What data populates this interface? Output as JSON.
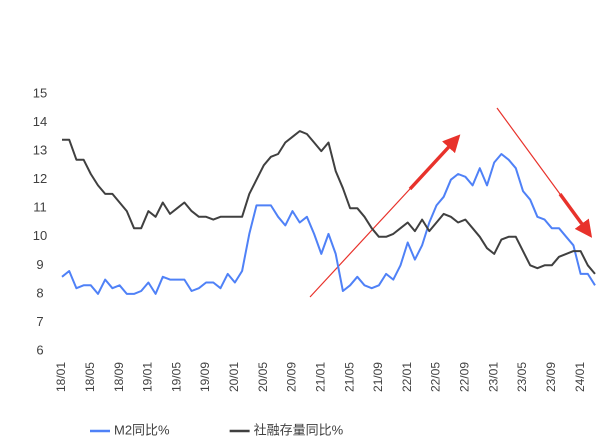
{
  "chart_data": {
    "type": "line",
    "categories": [
      "18/01",
      null,
      null,
      null,
      "18/05",
      null,
      null,
      null,
      "18/09",
      null,
      null,
      null,
      "19/01",
      null,
      null,
      null,
      "19/05",
      null,
      null,
      null,
      "19/09",
      null,
      null,
      null,
      "20/01",
      null,
      null,
      null,
      "20/05",
      null,
      null,
      null,
      "20/09",
      null,
      null,
      null,
      "21/01",
      null,
      null,
      null,
      "21/05",
      null,
      null,
      null,
      "21/09",
      null,
      null,
      null,
      "22/01",
      null,
      null,
      null,
      "22/05",
      null,
      null,
      null,
      "22/09",
      null,
      null,
      null,
      "23/01",
      null,
      null,
      null,
      "23/05",
      null,
      null,
      null,
      "23/09",
      null,
      null,
      null,
      "24/01",
      null,
      null
    ],
    "series": [
      {
        "name": "M2同比%",
        "color": "#4f81f7",
        "values": [
          8.6,
          8.8,
          8.2,
          8.3,
          8.3,
          8.0,
          8.5,
          8.2,
          8.3,
          8.0,
          8.0,
          8.1,
          8.4,
          8.0,
          8.6,
          8.5,
          8.5,
          8.5,
          8.1,
          8.2,
          8.4,
          8.4,
          8.2,
          8.7,
          8.4,
          8.8,
          10.1,
          11.1,
          11.1,
          11.1,
          10.7,
          10.4,
          10.9,
          10.5,
          10.7,
          10.1,
          9.4,
          10.1,
          9.4,
          8.1,
          8.3,
          8.6,
          8.3,
          8.2,
          8.3,
          8.7,
          8.5,
          9.0,
          9.8,
          9.2,
          9.7,
          10.5,
          11.1,
          11.4,
          12.0,
          12.2,
          12.1,
          11.8,
          12.4,
          11.8,
          12.6,
          12.9,
          12.7,
          12.4,
          11.6,
          11.3,
          10.7,
          10.6,
          10.3,
          10.3,
          10.0,
          9.7,
          8.7,
          8.7,
          8.3
        ]
      },
      {
        "name": "社融存量同比%",
        "color": "#404040",
        "values": [
          13.4,
          13.4,
          12.7,
          12.7,
          12.2,
          11.8,
          11.5,
          11.5,
          11.2,
          10.9,
          10.3,
          10.3,
          10.9,
          10.7,
          11.2,
          10.8,
          11.0,
          11.2,
          10.9,
          10.7,
          10.7,
          10.6,
          10.7,
          10.7,
          10.7,
          10.7,
          11.5,
          12.0,
          12.5,
          12.8,
          12.9,
          13.3,
          13.5,
          13.7,
          13.6,
          13.3,
          13.0,
          13.3,
          12.3,
          11.7,
          11.0,
          11.0,
          10.7,
          10.3,
          10.0,
          10.0,
          10.1,
          10.3,
          10.5,
          10.2,
          10.6,
          10.2,
          10.5,
          10.8,
          10.7,
          10.5,
          10.6,
          10.3,
          10.0,
          9.6,
          9.4,
          9.9,
          10.0,
          10.0,
          9.5,
          9.0,
          8.9,
          9.0,
          9.0,
          9.3,
          9.4,
          9.5,
          9.5,
          9.0,
          8.7
        ]
      }
    ],
    "ylim": [
      6,
      15
    ],
    "yticks": [
      6,
      7,
      8,
      9,
      10,
      11,
      12,
      13,
      14,
      15
    ],
    "legend": "bottom"
  }
}
